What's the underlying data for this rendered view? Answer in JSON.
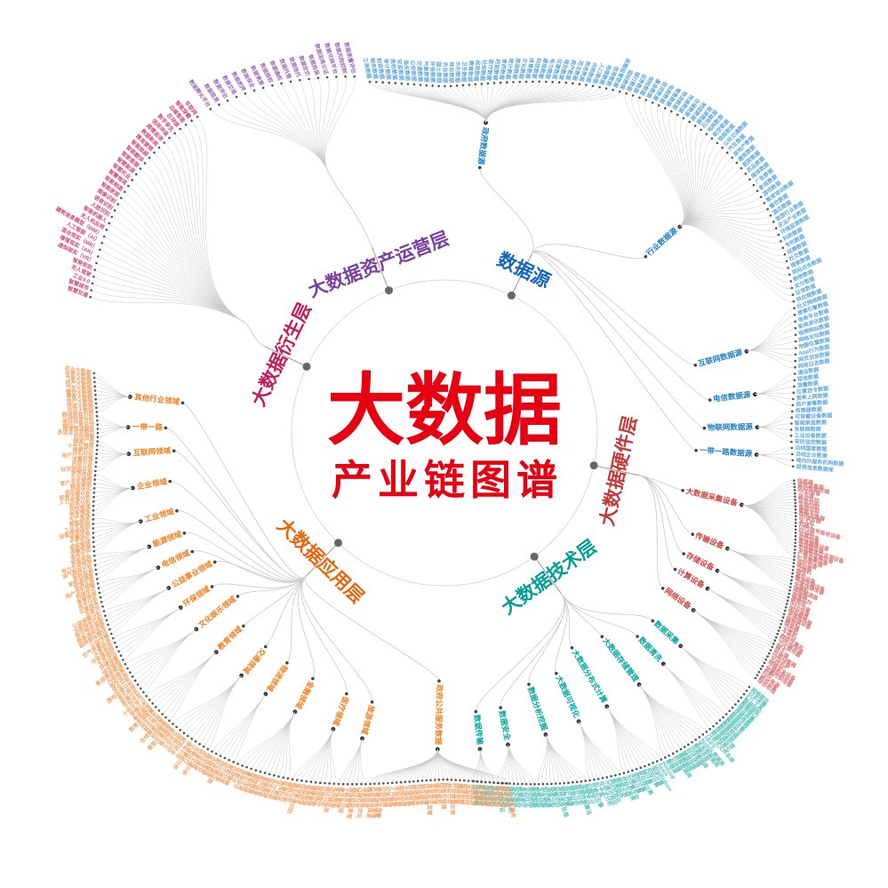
{
  "title": {
    "line1": "大数据",
    "line2": "产业链图谱",
    "color": "#e60012"
  },
  "edge_color": "#c9c9c9",
  "ring_color": "#d9d9d9",
  "branches": [
    {
      "id": "source",
      "label": "数据源",
      "color": "#1565c0",
      "childColor": "#1f7fc4",
      "leafColor": "#5fa8dc",
      "children": [
        {
          "label": "政府数据源",
          "leaves": [
            "工商数据",
            "税务数据",
            "财政数据",
            "审计数据",
            "质检数据",
            "安监数据",
            "海关数据",
            "公安数据",
            "交通数据",
            "气象数据",
            "环保数据",
            "国土数据",
            "农业数据",
            "林业数据",
            "水利数据",
            "卫生数据",
            "教育数据",
            "民政数据",
            "社保数据",
            "医疗数据",
            "药监数据",
            "食药数据",
            "统计数据",
            "旅游数据",
            "文化数据",
            "体育数据",
            "科技数据",
            "通信数据",
            "电力数据",
            "住建数据",
            "规划数据",
            "房产数据",
            "司法数据",
            "检务数据",
            "法院数据",
            "人口数据",
            "地理数据",
            "信用数据",
            "金融监管数据",
            "招标数据"
          ]
        },
        {
          "label": "行业数据源",
          "leaves": [
            "银行数据",
            "证券数据",
            "保险数据",
            "基金数据",
            "信贷数据",
            "电商数据",
            "零售数据",
            "物流数据",
            "快递数据",
            "仓储数据",
            "制造数据",
            "能源数据",
            "石油数据",
            "电网数据",
            "航空数据",
            "铁路数据",
            "公共交通数据",
            "汽车数据",
            "房地产数据",
            "建筑数据",
            "医院数据",
            "药品数据",
            "媒体数据",
            "广告数据",
            "影视数据",
            "游戏数据",
            "教育培训数据",
            "餐饮数据",
            "酒店数据",
            "旅游行业数据",
            "农业产业数据",
            "环境监测数据",
            "科研数据",
            "专利数据",
            "招聘数据",
            "社交数据",
            "搜索数据",
            "网站点击数据",
            "购物数据",
            "支付数据",
            "征信数据",
            "供应链数据"
          ]
        },
        {
          "label": "互联网数据源",
          "leaves": [
            "社交网络数据",
            "搜索引擎数据",
            "电商平台数据",
            "新闻资讯数据",
            "视频网站数据",
            "网络论坛数据",
            "地图位置数据",
            "App行为数据",
            "网页浏览数据",
            "网络日志数据"
          ]
        },
        {
          "label": "电信数据源",
          "leaves": [
            "通话数据",
            "短信数据",
            "流量数据",
            "位置信令数据",
            "宽带上网数据",
            "用户套餐数据"
          ]
        },
        {
          "label": "物联网数据源",
          "leaves": [
            "传感器数据",
            "可穿戴设备数据",
            "智能家居数据",
            "车联网数据",
            "工业设备数据",
            "安防监控数据"
          ]
        },
        {
          "label": "一带一路数据源",
          "leaves": [
            "沿线国家数据",
            "沿线企业数据",
            "境内外服务机构数据",
            "经贸信息数据库"
          ]
        }
      ]
    },
    {
      "id": "hardware",
      "label": "大数据硬件层",
      "color": "#bf3a3a",
      "childColor": "#cc4343",
      "leafColor": "#d97b7b",
      "children": [
        {
          "label": "大数据采集设备",
          "leaves": [
            "传感器",
            "视觉采集器",
            "移动智能终端",
            "RFID设备",
            "一卡通",
            "移动支付",
            "证件识别",
            "生物识别",
            "条码识别",
            "智能卡片",
            "视频采集器",
            "2D读写器",
            "无人机",
            "机器人",
            "GPS信号接收设备",
            "POS机",
            "车载设备",
            "监控设备",
            "高清摄像设备",
            "全球眼设备",
            "可穿戴医疗监测设备",
            "关键字采集设备",
            "广电采集设备",
            "红外感应器"
          ]
        },
        {
          "label": "传输设备",
          "leaves": [
            "光纤设备",
            "路由器",
            "交换机",
            "网关",
            "基站设备",
            "微波传输设备",
            "卫星传输设备",
            "光端机",
            "调制解调器",
            "中继器"
          ]
        },
        {
          "label": "存储设备",
          "leaves": [
            "磁盘阵列",
            "磁带库",
            "NAS设备",
            "SAN设备",
            "固态硬盘",
            "存储服务器",
            "云存储设备",
            "磁带机"
          ]
        },
        {
          "label": "计算设备",
          "leaves": [
            "服务器",
            "小型机",
            "大型机",
            "工作站",
            "超级计算机",
            "GPU服务器",
            "刀片服务器"
          ]
        },
        {
          "label": "网络设备",
          "leaves": [
            "网卡",
            "防火墙",
            "负载均衡器",
            "VPN设备",
            "无线AP",
            "网络安全设备",
            "入侵检测设备",
            "流量控制设备",
            "机柜",
            "UPS电源",
            "散热设备",
            "综合布线"
          ]
        }
      ]
    },
    {
      "id": "tech",
      "label": "大数据技术层",
      "color": "#009e96",
      "childColor": "#00a79d",
      "leafColor": "#57c2ba",
      "children": [
        {
          "label": "数据采集",
          "leaves": [
            "网络爬虫",
            "日志采集",
            "ETL工具",
            "数据抽取",
            "数据接口",
            "埋点采集",
            "传感采集",
            "数据迁移"
          ]
        },
        {
          "label": "数据清洗",
          "leaves": [
            "数据去重",
            "数据补全",
            "数据转换",
            "数据校验",
            "异常值处理",
            "数据标准化"
          ]
        },
        {
          "label": "大数据存储管理",
          "leaves": [
            "分布式文件系统",
            "HDFS",
            "NoSQL数据库",
            "关系型数据库",
            "数据仓库",
            "内存数据库",
            "列式存储",
            "键值存储",
            "图数据库",
            "时序数据库",
            "云存储",
            "数据湖"
          ]
        },
        {
          "label": "大数据分布式计算",
          "leaves": [
            "Hadoop",
            "Spark",
            "MapReduce",
            "流式计算",
            "内存计算",
            "图计算",
            "批处理计算",
            "实时计算",
            "边缘计算",
            "云计算平台"
          ]
        },
        {
          "label": "大数据可视化",
          "leaves": [
            "可视化报表",
            "数据大屏",
            "图表组件",
            "GIS可视化",
            "三维可视化",
            "交互式分析",
            "BI工具",
            "可视化引擎"
          ]
        },
        {
          "label": "数据分析挖掘",
          "leaves": [
            "机器学习",
            "深度学习",
            "数据挖掘算法",
            "统计分析",
            "预测分析",
            "用户画像",
            "推荐引擎",
            "自然语言处理",
            "图像识别",
            "语音分析",
            "知识图谱",
            "文本挖掘"
          ]
        },
        {
          "label": "数据安全",
          "leaves": [
            "数据加密",
            "数据脱敏",
            "访问控制",
            "身份认证",
            "数据审计",
            "容灾备份",
            "隐私保护",
            "防泄漏系统",
            "安全监测",
            "区块链存证"
          ]
        },
        {
          "label": "数据传输",
          "leaves": [
            "消息队列",
            "数据总线",
            "传输协议",
            "数据同步",
            "断点续传",
            "压缩传输"
          ]
        }
      ]
    },
    {
      "id": "app",
      "label": "大数据应用层",
      "color": "#e8650e",
      "childColor": "#ee7f1e",
      "leafColor": "#efa469",
      "children": [
        {
          "label": "其他行业领域",
          "leaves": [
            "农业大数据",
            "体育大数据",
            "气象大数据",
            "房产大数据",
            "汽车大数据",
            "餐饮大数据",
            "零售大数据",
            "地产大数据",
            "传媒大数据",
            "司法大数据"
          ]
        },
        {
          "label": "一带一路",
          "leaves": [
            "跨境贸易分析",
            "沿线投资分析",
            "国际产能合作",
            "跨境物流服务",
            "多语言信息服务",
            "风险预警"
          ]
        },
        {
          "label": "互联网领域",
          "leaves": [
            "精准广告",
            "个性化推荐",
            "搜索优化",
            "用户行为分析",
            "流量运营",
            "内容分发",
            "社交网络分析",
            "舆情监测"
          ]
        },
        {
          "label": "企业领域",
          "leaves": [
            "企业征信",
            "客户关系管理",
            "精准营销",
            "供应链优化",
            "经营决策分析",
            "人力资源分析",
            "财务分析",
            "风险管理",
            "竞争情报",
            "生产管理"
          ]
        },
        {
          "label": "工业领域",
          "leaves": [
            "智能制造",
            "工业互联网",
            "设备预测维护",
            "质量追溯",
            "工艺优化",
            "能耗管理",
            "供需预测",
            "柔性生产"
          ]
        },
        {
          "label": "能源领域",
          "leaves": [
            "智能电网",
            "电力负荷预测",
            "油气勘探分析",
            "能耗监测",
            "新能源调度",
            "能源交易"
          ]
        },
        {
          "label": "电信领域",
          "leaves": [
            "用户流失预警",
            "网络优化",
            "套餐推荐",
            "信令分析",
            "位置服务",
            "反欺诈"
          ]
        },
        {
          "label": "公益事业领域",
          "leaves": [
            "公益捐赠分析",
            "志愿服务匹配",
            "救灾物资调度",
            "慈善透明监管",
            "弱势群体帮扶",
            "公益传播"
          ]
        },
        {
          "label": "环保领域",
          "leaves": [
            "空气质量监测",
            "水质监测",
            "污染源追踪",
            "生态评估",
            "环境预警",
            "排放管理"
          ]
        },
        {
          "label": "文化娱乐领域",
          "leaves": [
            "影视票房预测",
            "内容推荐",
            "版权监测",
            "受众分析",
            "游戏运营分析",
            "音乐推荐",
            "直播分析",
            "文创开发"
          ]
        },
        {
          "label": "教育领域",
          "leaves": [
            "个性化学习",
            "学情分析",
            "智能题库",
            "教育资源配置",
            "招生分析",
            "就业预测",
            "在线教育运营",
            "校园管理"
          ]
        },
        {
          "label": "交通领域",
          "leaves": [
            "智能交通调度",
            "路况预测",
            "公交优化",
            "出行规划",
            "车流监测",
            "停车引导",
            "交通事故分析",
            "共享出行",
            "轨道交通分析",
            "货运调度"
          ]
        },
        {
          "label": "物流领域",
          "leaves": [
            "路径优化",
            "仓储管理",
            "配送调度",
            "供应链追踪",
            "运力预测",
            "智能分拣"
          ]
        },
        {
          "label": "金融领域",
          "leaves": [
            "风控建模",
            "反欺诈",
            "信用评分",
            "量化交易",
            "智能投顾",
            "保险精算",
            "客户画像",
            "营销获客",
            "贷后管理",
            "支付分析",
            "资产管理",
            "监管科技"
          ]
        },
        {
          "label": "医疗领域",
          "leaves": [
            "辅助诊断",
            "基因分析",
            "医学影像识别",
            "药物研发",
            "疾病预测",
            "健康管理",
            "医保控费",
            "远程医疗",
            "病历分析",
            "流行病监测"
          ]
        },
        {
          "label": "旅游领域",
          "leaves": [
            "客流预测",
            "景区管理",
            "个性化行程",
            "旅游营销",
            "酒店收益管理",
            "口碑分析"
          ]
        },
        {
          "label": "政府公共服务数据",
          "leaves": [
            "政务服务优化",
            "精准扶贫",
            "社会信用体系",
            "智慧城市管理",
            "公共安全预警",
            "应急指挥",
            "人口管理",
            "市场监管",
            "税收征管",
            "交通治理",
            "环境治理",
            "医保监管",
            "社保服务",
            "就业服务",
            "住房保障",
            "食品安全监管",
            "审批提速",
            "城市规划",
            "网格化管理",
            "政务公开",
            "公共资源交易",
            "财政监督",
            "廉政监察",
            "疫情防控",
            "治安防控",
            "消防管理",
            "气象服务",
            "水务管理",
            "电子证照",
            "一网通办",
            "民生热线",
            "基层治理",
            "数字乡村",
            "公共文化服务"
          ]
        }
      ]
    },
    {
      "id": "derivative",
      "label": "大数据衍生层",
      "color": "#c41a55",
      "childColor": "#c41a55",
      "leafColor": "#d14b76",
      "leaves": [
        "智慧交通",
        "智慧城市",
        "工业4.0",
        "无人驾驶",
        "智能安防",
        "虚拟现实（VR）",
        "增强现实（AR）",
        "混合现实（MR）",
        "人工智能（AI）",
        "建筑信息模型（BIM）",
        "无人机应用",
        "智能机器人",
        "人脸识别",
        "语音识别",
        "图像识别",
        "智能家居",
        "智能制造",
        "智慧物流",
        "智慧农业",
        "智慧能源",
        "智能客服",
        "智能翻译",
        "智能投顾",
        "精准营销",
        "数据新闻",
        "舆情监测",
        "信用评级",
        "数字孪生",
        "区块链",
        "边缘智能",
        "智能穿戴",
        "车联网"
      ]
    },
    {
      "id": "asset",
      "label": "大数据资产运营层",
      "color": "#7b3fa0",
      "childColor": "#7b3fa0",
      "leafColor": "#9b6cb8",
      "leaves": [
        "数据孵化平台",
        "数据租赁",
        "数据评估",
        "数据交易",
        "数据质押",
        "数据保全",
        "数据溯源",
        "数据授权",
        "数据确权",
        "数据托管",
        "数据信托",
        "数据定价",
        "数据担保",
        "数据运维公证",
        "数据兑换平台",
        "数据风险控制",
        "数据质量评估"
      ]
    }
  ]
}
